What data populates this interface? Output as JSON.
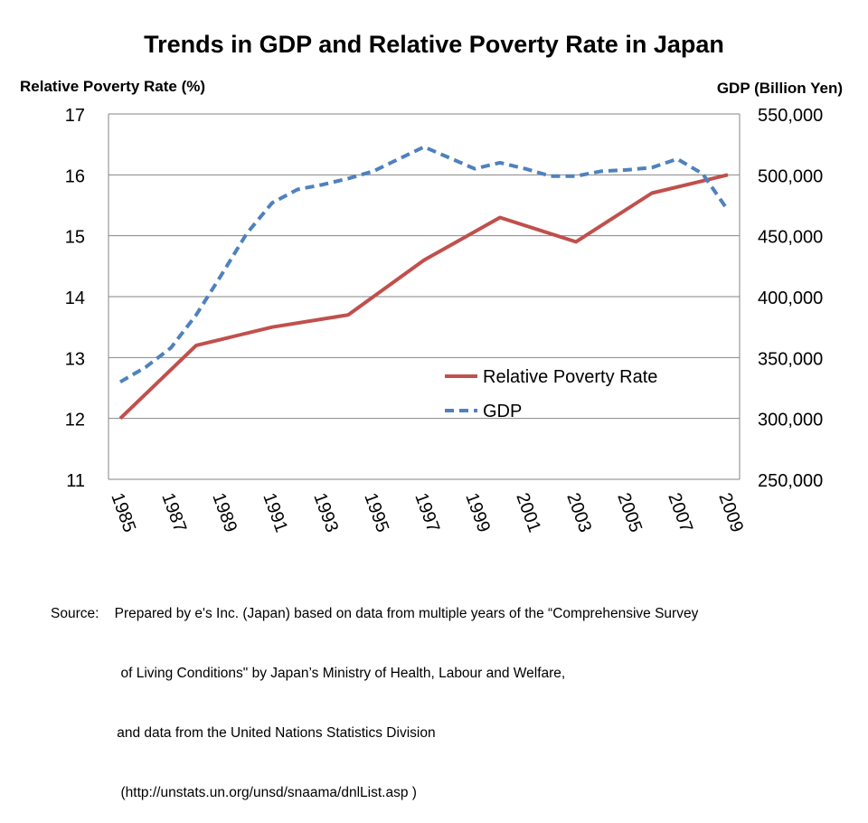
{
  "chart_data": {
    "type": "line",
    "title": "Trends in GDP and Relative Poverty Rate in Japan",
    "y_left_label": "Relative Poverty Rate (%)",
    "y_right_label": "GDP (Billion Yen)",
    "x_ticks": [
      "1985",
      "1987",
      "1989",
      "1991",
      "1993",
      "1995",
      "1997",
      "1999",
      "2001",
      "2003",
      "2005",
      "2007",
      "2009"
    ],
    "x_range": [
      1985,
      2009
    ],
    "y_left_range": [
      11,
      17
    ],
    "y_left_ticks": [
      "11",
      "12",
      "13",
      "14",
      "15",
      "16",
      "17"
    ],
    "y_right_range": [
      250000,
      550000
    ],
    "y_right_ticks": [
      "250,000",
      "300,000",
      "350,000",
      "400,000",
      "450,000",
      "500,000",
      "550,000"
    ],
    "grid": "horizontal",
    "legend_position": "center-right",
    "series": [
      {
        "name": "Relative Poverty Rate",
        "axis": "left",
        "color": "#C0504D",
        "style": "solid",
        "points": [
          [
            1985,
            12.0
          ],
          [
            1988,
            13.2
          ],
          [
            1991,
            13.5
          ],
          [
            1994,
            13.7
          ],
          [
            1997,
            14.6
          ],
          [
            2000,
            15.3
          ],
          [
            2003,
            14.9
          ],
          [
            2006,
            15.7
          ],
          [
            2009,
            16.0
          ]
        ]
      },
      {
        "name": "GDP",
        "axis": "right",
        "color": "#4F81BD",
        "style": "dashed",
        "points": [
          [
            1985,
            330000
          ],
          [
            1986,
            342000
          ],
          [
            1987,
            358000
          ],
          [
            1988,
            385000
          ],
          [
            1989,
            418000
          ],
          [
            1990,
            452000
          ],
          [
            1991,
            477000
          ],
          [
            1992,
            488000
          ],
          [
            1993,
            492000
          ],
          [
            1994,
            497000
          ],
          [
            1995,
            503000
          ],
          [
            1996,
            513000
          ],
          [
            1997,
            523000
          ],
          [
            1998,
            514000
          ],
          [
            1999,
            505000
          ],
          [
            2000,
            510000
          ],
          [
            2001,
            505000
          ],
          [
            2002,
            499000
          ],
          [
            2003,
            499000
          ],
          [
            2004,
            503000
          ],
          [
            2005,
            504000
          ],
          [
            2006,
            506000
          ],
          [
            2007,
            513000
          ],
          [
            2008,
            501000
          ],
          [
            2009,
            471000
          ]
        ]
      }
    ]
  },
  "source": {
    "lines": [
      "Source:    Prepared by e's Inc. (Japan) based on data from multiple years of the “Comprehensive Survey",
      "                  of Living Conditions\" by Japan’s Ministry of Health, Labour and Welfare,",
      "                 and data from the United Nations Statistics Division",
      "                  (http://unstats.un.org/unsd/snaama/dnlList.asp )"
    ]
  }
}
